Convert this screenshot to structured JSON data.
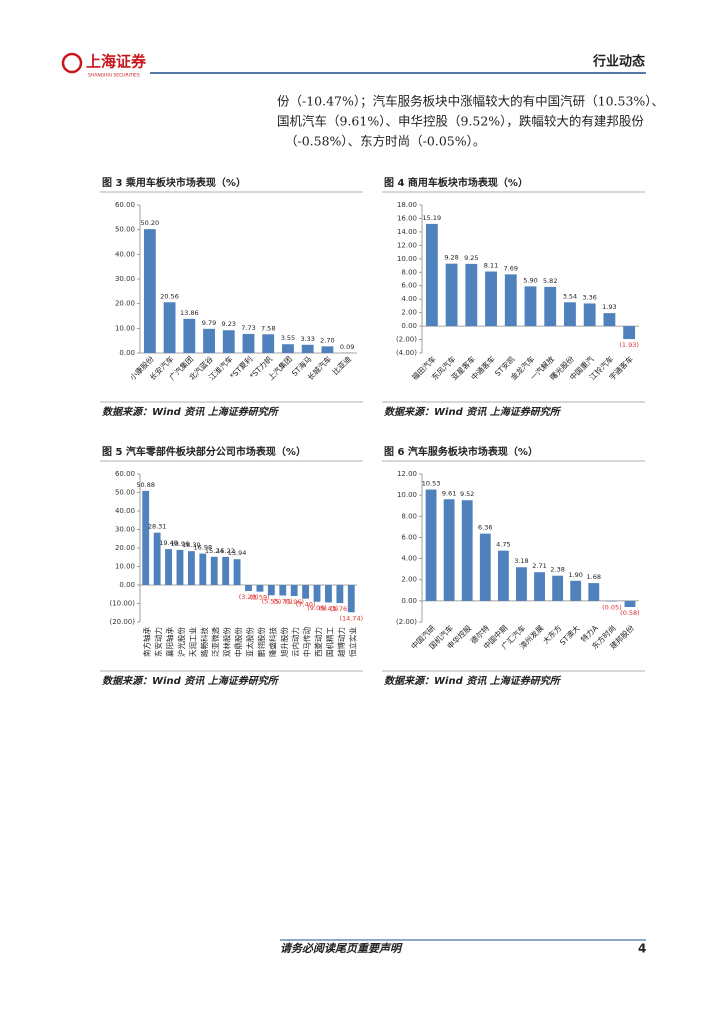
{
  "header": {
    "logo_text": "上海证券",
    "logo_subtext": "SHANGHAI SECURITIES",
    "section": "行业动态"
  },
  "body_text": [
    "份（-10.47%）；汽车服务板块中涨幅较大的有中国汽研（10.53%）、",
    "国机汽车（9.61%）、申华控股（9.52%），跌幅较大的有建邦股份",
    "（-0.58%）、东方时尚（-0.05%）。"
  ],
  "chart_data": [
    {
      "type": "bar",
      "title": "图 3 乘用车板块市场表现（%）",
      "source": "数据来源：Wind 资讯 上海证券研究所",
      "color": "#4f81bd",
      "negative_label_color": "#e03030",
      "categories": [
        "小康股份",
        "长安汽车",
        "广汽集团",
        "北汽蓝谷",
        "江淮汽车",
        "*ST夏利",
        "*ST力帆",
        "上汽集团",
        "ST海马",
        "长城汽车",
        "比亚迪"
      ],
      "values": [
        50.2,
        20.56,
        13.86,
        9.79,
        9.23,
        7.73,
        7.58,
        3.55,
        3.33,
        2.7,
        0.09
      ],
      "value_labels": [
        "50.20",
        "20.56",
        "13.86",
        "9.79",
        "9.23",
        "7.73",
        "7.58",
        "3.55",
        "3.33",
        "2.70",
        "0.09"
      ],
      "ylim": [
        0,
        60
      ],
      "yticks": [
        {
          "value": 0,
          "label": "0.00"
        },
        {
          "value": 10,
          "label": "10.00"
        },
        {
          "value": 20,
          "label": "20.00"
        },
        {
          "value": 30,
          "label": "30.00"
        },
        {
          "value": 40,
          "label": "40.00"
        },
        {
          "value": 50,
          "label": "50.00"
        },
        {
          "value": 60,
          "label": "60.00"
        }
      ]
    },
    {
      "type": "bar",
      "title": "图 4 商用车板块市场表现（%）",
      "source": "数据来源：Wind 资讯 上海证券研究所",
      "color": "#4f81bd",
      "negative_label_color": "#e03030",
      "categories": [
        "福田汽车",
        "东风汽车",
        "亚星客车",
        "中通客车",
        "ST安凯",
        "金龙汽车",
        "一汽解放",
        "曙光股份",
        "中国重汽",
        "江铃汽车",
        "宇通客车"
      ],
      "values": [
        15.19,
        9.28,
        9.25,
        8.11,
        7.69,
        5.9,
        5.82,
        3.54,
        3.36,
        1.93,
        -1.93
      ],
      "value_labels": [
        "15.19",
        "9.28",
        "9.25",
        "8.11",
        "7.69",
        "5.90",
        "5.82",
        "3.54",
        "3.36",
        "1.93",
        "(1.93)"
      ],
      "ylim": [
        -4,
        18
      ],
      "yticks": [
        {
          "value": -4,
          "label": "(4.00)"
        },
        {
          "value": -2,
          "label": "(2.00)"
        },
        {
          "value": 0,
          "label": "0.00"
        },
        {
          "value": 2,
          "label": "2.00"
        },
        {
          "value": 4,
          "label": "4.00"
        },
        {
          "value": 6,
          "label": "6.00"
        },
        {
          "value": 8,
          "label": "8.00"
        },
        {
          "value": 10,
          "label": "10.00"
        },
        {
          "value": 12,
          "label": "12.00"
        },
        {
          "value": 14,
          "label": "14.00"
        },
        {
          "value": 16,
          "label": "16.00"
        },
        {
          "value": 18,
          "label": "18.00"
        }
      ]
    },
    {
      "type": "bar",
      "title": "图 5 汽车零部件板块部分公司市场表现（%）",
      "source": "数据来源：Wind 资讯 上海证券研究所",
      "color": "#4f81bd",
      "negative_label_color": "#e03030",
      "categories": [
        "南方轴承",
        "东安动力",
        "襄阳轴承",
        "沪光股份",
        "天润工业",
        "路畅科技",
        "泛亚微透",
        "双林股份",
        "中鼎股份",
        "亚太股份",
        "鹏翎股份",
        "隆盛科技",
        "旭升股份",
        "云内动力",
        "中马传动",
        "西菱动力",
        "国机精工",
        "越博动力",
        "恒立实业"
      ],
      "values": [
        50.88,
        28.31,
        19.4,
        18.96,
        18.3,
        16.98,
        15.24,
        15.22,
        13.94,
        -3.28,
        -3.59,
        -5.55,
        -5.7,
        -5.96,
        -7.4,
        -9.06,
        -9.43,
        -9.76,
        -14.74
      ],
      "value_labels": [
        "50.88",
        "28.31",
        "19.40",
        "18.96",
        "18.30",
        "16.98",
        "15.24",
        "15.22",
        "13.94",
        "(3.28)",
        "(3.59)",
        "(5.55)",
        "(5.70)",
        "(5.96)",
        "(7.40)",
        "(9.06)",
        "(9.43)",
        "(9.76)",
        "(14.74)"
      ],
      "ylim": [
        -20,
        60
      ],
      "yticks": [
        {
          "value": -20,
          "label": "(20.00)"
        },
        {
          "value": -10,
          "label": "(10.00)"
        },
        {
          "value": 0,
          "label": "0.00"
        },
        {
          "value": 10,
          "label": "10.00"
        },
        {
          "value": 20,
          "label": "20.00"
        },
        {
          "value": 30,
          "label": "30.00"
        },
        {
          "value": 40,
          "label": "40.00"
        },
        {
          "value": 50,
          "label": "50.00"
        },
        {
          "value": 60,
          "label": "60.00"
        }
      ]
    },
    {
      "type": "bar",
      "title": "图 6 汽车服务板块市场表现（%）",
      "source": "数据来源：Wind 资讯 上海证券研究所",
      "color": "#4f81bd",
      "negative_label_color": "#e03030",
      "categories": [
        "中国汽研",
        "国机汽车",
        "申华控股",
        "德尔特",
        "中国中期",
        "广汇汽车",
        "漳州发展",
        "大东方",
        "ST澳大",
        "特力A",
        "东方时尚",
        "建邦股份"
      ],
      "values": [
        10.53,
        9.61,
        9.52,
        6.36,
        4.75,
        3.18,
        2.71,
        2.38,
        1.9,
        1.68,
        -0.05,
        -0.58
      ],
      "value_labels": [
        "10.53",
        "9.61",
        "9.52",
        "6.36",
        "4.75",
        "3.18",
        "2.71",
        "2.38",
        "1.90",
        "1.68",
        "(0.05)",
        "(0.58)"
      ],
      "ylim": [
        -2,
        12
      ],
      "yticks": [
        {
          "value": -2,
          "label": "(2.00)"
        },
        {
          "value": 0,
          "label": "0.00"
        },
        {
          "value": 2,
          "label": "2.00"
        },
        {
          "value": 4,
          "label": "4.00"
        },
        {
          "value": 6,
          "label": "6.00"
        },
        {
          "value": 8,
          "label": "8.00"
        },
        {
          "value": 10,
          "label": "10.00"
        },
        {
          "value": 12,
          "label": "12.00"
        }
      ]
    }
  ],
  "footer": {
    "notice": "请务必阅读尾页重要声明",
    "page": "4"
  }
}
